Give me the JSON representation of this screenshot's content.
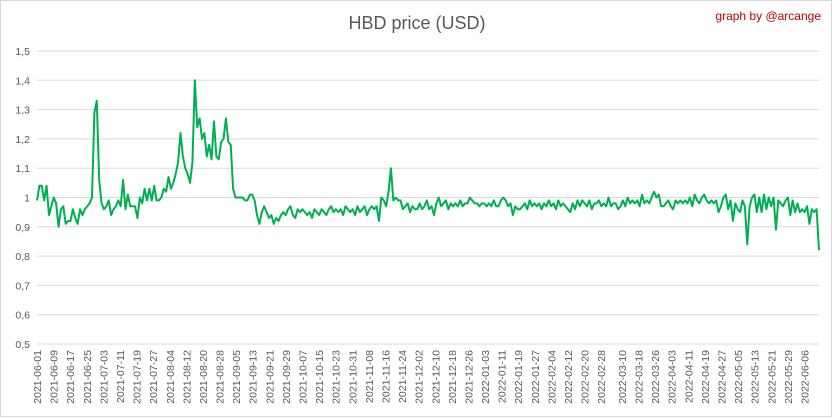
{
  "chart_data": {
    "type": "line",
    "title": "HBD price (USD)",
    "credit": "graph by @arcange",
    "xlabel": "",
    "ylabel": "",
    "ylim": [
      0.5,
      1.5
    ],
    "y_ticks": [
      "0,5",
      "0,6",
      "0,7",
      "0,8",
      "0,9",
      "1",
      "1,1",
      "1,2",
      "1,3",
      "1,4",
      "1,5"
    ],
    "y_tick_values": [
      0.5,
      0.6,
      0.7,
      0.8,
      0.9,
      1.0,
      1.1,
      1.2,
      1.3,
      1.4,
      1.5
    ],
    "x_ticks": [
      "2021-06-01",
      "2021-06-09",
      "2021-06-17",
      "2021-06-25",
      "2021-07-03",
      "2021-07-11",
      "2021-07-19",
      "2021-07-27",
      "2021-08-04",
      "2021-08-12",
      "2021-08-20",
      "2021-08-28",
      "2021-09-05",
      "2021-09-13",
      "2021-09-21",
      "2021-09-29",
      "2021-10-07",
      "2021-10-15",
      "2021-10-23",
      "2021-10-31",
      "2021-11-08",
      "2021-11-16",
      "2021-11-24",
      "2021-12-02",
      "2021-12-10",
      "2021-12-18",
      "2021-12-26",
      "2022-01-03",
      "2022-01-11",
      "2022-01-19",
      "2022-01-27",
      "2022-02-04",
      "2022-02-12",
      "2022-02-20",
      "2022-02-28",
      "2022-03-10",
      "2022-03-18",
      "2022-03-26",
      "2022-04-03",
      "2022-04-11",
      "2022-04-19",
      "2022-04-27",
      "2022-05-05",
      "2022-05-13",
      "2022-05-21",
      "2022-05-29",
      "2022-06-06"
    ],
    "grid": true,
    "legend": "none",
    "colors": {
      "line": "#00b050",
      "grid": "#d9d9d9",
      "text": "#595959",
      "credit": "#c00000"
    },
    "series": [
      {
        "x_start": "2021-06-01",
        "x_end": "2022-06-13",
        "values": [
          0.99,
          1.04,
          1.04,
          0.99,
          1.04,
          0.94,
          0.97,
          1.0,
          0.98,
          0.9,
          0.96,
          0.97,
          0.91,
          0.92,
          0.92,
          0.96,
          0.93,
          0.91,
          0.96,
          0.94,
          0.96,
          0.97,
          0.98,
          1.0,
          1.29,
          1.33,
          1.06,
          0.98,
          0.96,
          0.97,
          0.99,
          0.94,
          0.96,
          0.97,
          0.99,
          0.97,
          1.06,
          0.96,
          1.01,
          0.97,
          0.97,
          0.97,
          0.93,
          1.0,
          0.98,
          1.03,
          0.99,
          1.03,
          0.99,
          1.04,
          0.99,
          0.99,
          1.0,
          1.03,
          1.02,
          1.07,
          1.03,
          1.05,
          1.08,
          1.12,
          1.22,
          1.14,
          1.1,
          1.08,
          1.05,
          1.12,
          1.4,
          1.24,
          1.27,
          1.2,
          1.22,
          1.14,
          1.18,
          1.13,
          1.26,
          1.14,
          1.13,
          1.19,
          1.2,
          1.27,
          1.19,
          1.18,
          1.03,
          1.0,
          1.0,
          1.0,
          1.0,
          0.99,
          0.99,
          1.01,
          1.01,
          0.99,
          0.94,
          0.91,
          0.95,
          0.97,
          0.95,
          0.93,
          0.94,
          0.91,
          0.93,
          0.92,
          0.94,
          0.95,
          0.94,
          0.96,
          0.97,
          0.94,
          0.93,
          0.96,
          0.95,
          0.96,
          0.95,
          0.94,
          0.95,
          0.93,
          0.96,
          0.95,
          0.94,
          0.96,
          0.95,
          0.94,
          0.96,
          0.97,
          0.95,
          0.96,
          0.95,
          0.96,
          0.94,
          0.97,
          0.96,
          0.95,
          0.96,
          0.94,
          0.97,
          0.95,
          0.96,
          0.97,
          0.94,
          0.96,
          0.97,
          0.96,
          0.97,
          0.92,
          1.0,
          0.99,
          0.97,
          1.02,
          1.1,
          0.99,
          1.0,
          0.99,
          0.99,
          0.96,
          0.97,
          0.98,
          0.95,
          0.97,
          0.96,
          0.96,
          0.98,
          0.96,
          0.97,
          0.99,
          0.96,
          0.97,
          0.94,
          0.98,
          1.0,
          0.97,
          0.98,
          0.99,
          0.96,
          0.98,
          0.97,
          0.98,
          0.97,
          0.99,
          0.97,
          0.98,
          0.98,
          1.0,
          0.99,
          0.98,
          0.98,
          0.97,
          0.98,
          0.98,
          0.97,
          0.98,
          0.97,
          0.99,
          0.97,
          0.97,
          0.99,
          1.0,
          0.99,
          0.97,
          0.98,
          0.94,
          0.97,
          0.96,
          0.96,
          0.97,
          0.98,
          0.96,
          0.99,
          0.97,
          0.98,
          0.97,
          0.98,
          0.96,
          0.98,
          0.97,
          0.99,
          0.97,
          0.98,
          0.96,
          0.99,
          0.97,
          0.98,
          0.97,
          0.96,
          0.95,
          0.98,
          0.96,
          0.99,
          0.97,
          0.99,
          0.98,
          0.97,
          0.99,
          0.96,
          0.98,
          0.98,
          0.99,
          0.97,
          0.98,
          0.97,
          1.0,
          0.97,
          0.98,
          0.98,
          0.96,
          0.97,
          0.99,
          0.97,
          1.0,
          0.98,
          0.99,
          0.98,
          0.99,
          0.97,
          1.01,
          0.98,
          0.99,
          0.98,
          1.0,
          1.02,
          1.0,
          1.01,
          0.97,
          0.97,
          0.98,
          0.99,
          0.97,
          0.96,
          0.99,
          0.98,
          0.99,
          0.98,
          0.99,
          0.98,
          1.0,
          0.97,
          1.01,
          0.99,
          0.98,
          1.0,
          1.01,
          0.99,
          0.98,
          0.99,
          0.98,
          0.99,
          0.95,
          0.97,
          1.0,
          1.01,
          0.96,
          0.99,
          0.92,
          0.98,
          0.96,
          0.95,
          0.99,
          0.97,
          0.84,
          0.97,
          1.0,
          1.01,
          0.95,
          1.0,
          0.95,
          1.01,
          0.96,
          1.0,
          0.97,
          1.0,
          0.89,
          0.99,
          0.98,
          0.97,
          0.99,
          1.0,
          0.94,
          0.99,
          0.95,
          0.98,
          0.95,
          0.96,
          0.95,
          0.97,
          0.91,
          0.96,
          0.95,
          0.96,
          0.82
        ]
      }
    ]
  }
}
